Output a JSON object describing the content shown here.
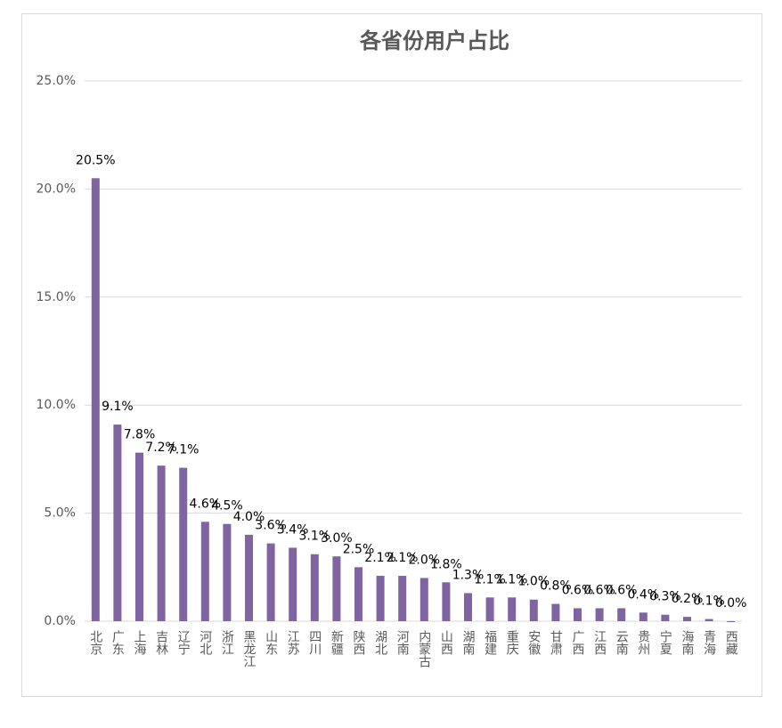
{
  "chart_data": {
    "type": "bar",
    "title": "各省份用户占比",
    "categories": [
      "北京",
      "广东",
      "上海",
      "吉林",
      "辽宁",
      "河北",
      "浙江",
      "黑龙江",
      "山东",
      "江苏",
      "四川",
      "新疆",
      "陕西",
      "湖北",
      "河南",
      "内蒙古",
      "山西",
      "湖南",
      "福建",
      "重庆",
      "安徽",
      "甘肃",
      "广西",
      "江西",
      "云南",
      "贵州",
      "宁夏",
      "海南",
      "青海",
      "西藏"
    ],
    "values": [
      20.5,
      9.1,
      7.8,
      7.2,
      7.1,
      4.6,
      4.5,
      4.0,
      3.6,
      3.4,
      3.1,
      3.0,
      2.5,
      2.1,
      2.1,
      2.0,
      1.8,
      1.3,
      1.1,
      1.1,
      1.0,
      0.8,
      0.6,
      0.6,
      0.6,
      0.4,
      0.3,
      0.2,
      0.1,
      0.0
    ],
    "value_labels": [
      "20.5%",
      "9.1%",
      "7.8%",
      "7.2%",
      "7.1%",
      "4.6%",
      "4.5%",
      "4.0%",
      "3.6%",
      "3.4%",
      "3.1%",
      "3.0%",
      "2.5%",
      "2.1%",
      "2.1%",
      "2.0%",
      "1.8%",
      "1.3%",
      "1.1%",
      "1.1%",
      "1.0%",
      "0.8%",
      "0.6%",
      "0.6%",
      "0.6%",
      "0.4%",
      "0.3%",
      "0.2%",
      "0.1%",
      "0.0%"
    ],
    "color": "#8064a2",
    "ylim": [
      0,
      25
    ],
    "yticks": [
      {
        "value": 0,
        "label": "0.0%"
      },
      {
        "value": 5,
        "label": "5.0%"
      },
      {
        "value": 10,
        "label": "10.0%"
      },
      {
        "value": 15,
        "label": "15.0%"
      },
      {
        "value": 20,
        "label": "20.0%"
      },
      {
        "value": 25,
        "label": "25.0%"
      }
    ],
    "grid": true
  }
}
